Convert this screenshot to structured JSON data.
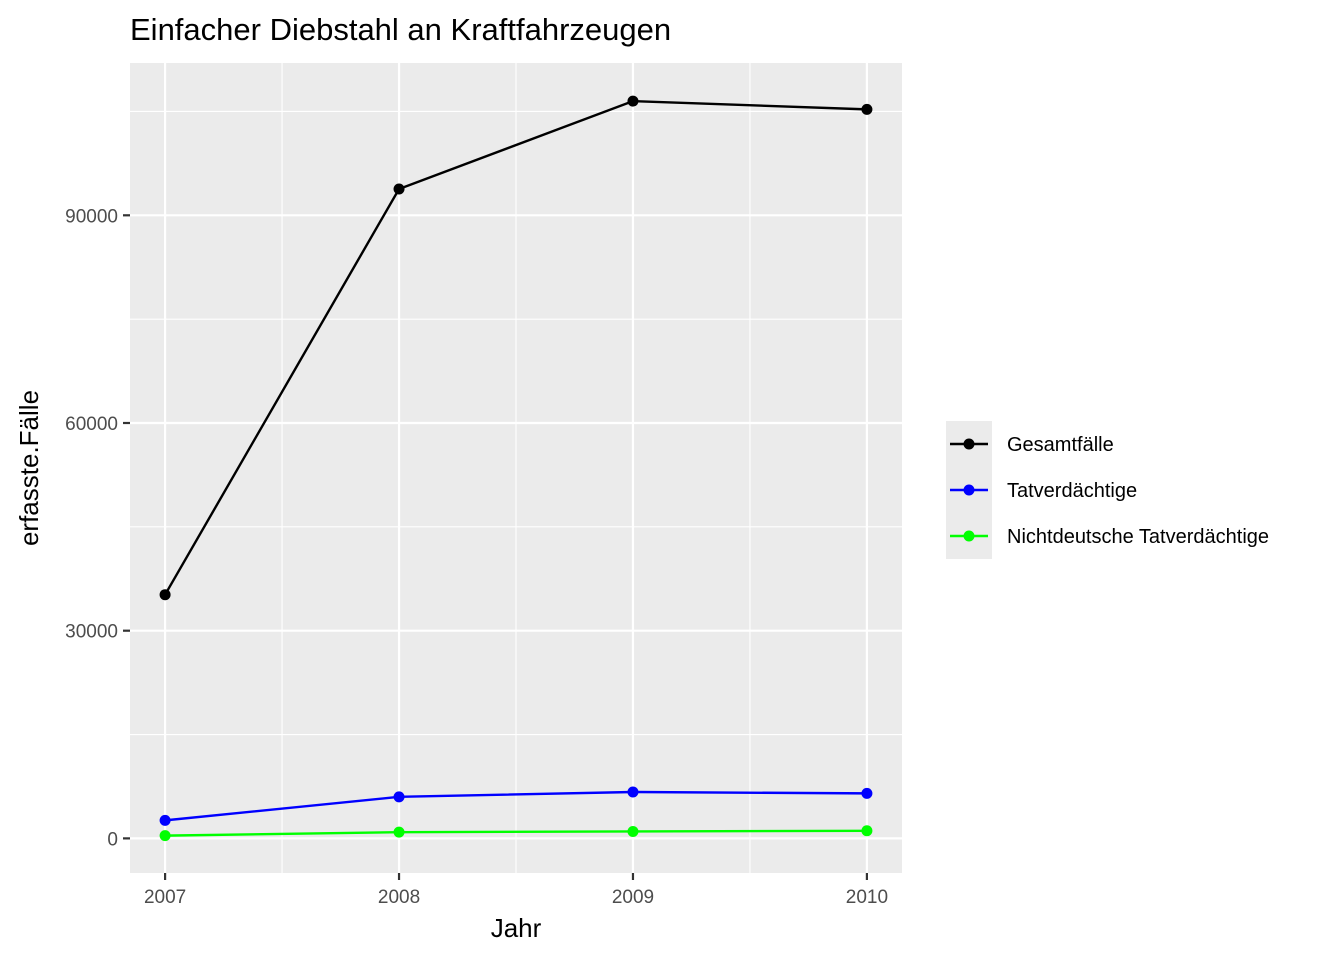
{
  "chart_data": {
    "type": "line",
    "title": "Einfacher Diebstahl an Kraftfahrzeugen",
    "xlabel": "Jahr",
    "ylabel": "erfasste.Fälle",
    "x": [
      2007,
      2008,
      2009,
      2010
    ],
    "x_tick_labels": [
      "2007",
      "2008",
      "2009",
      "2010"
    ],
    "y_ticks": [
      0,
      30000,
      60000,
      90000
    ],
    "y_tick_labels": [
      "0",
      "30000",
      "60000",
      "90000"
    ],
    "xlim": [
      2006.85,
      2010.15
    ],
    "ylim": [
      -5000,
      112000
    ],
    "grid": true,
    "legend_position": "right",
    "series": [
      {
        "name": "Gesamtfälle",
        "color": "#000000",
        "values": [
          35200,
          93800,
          106500,
          105300
        ]
      },
      {
        "name": "Tatverdächtige",
        "color": "#0000ff",
        "values": [
          2600,
          6000,
          6700,
          6500
        ]
      },
      {
        "name": "Nichtdeutsche Tatverdächtige",
        "color": "#00ff00",
        "values": [
          400,
          900,
          1000,
          1100
        ]
      }
    ]
  }
}
